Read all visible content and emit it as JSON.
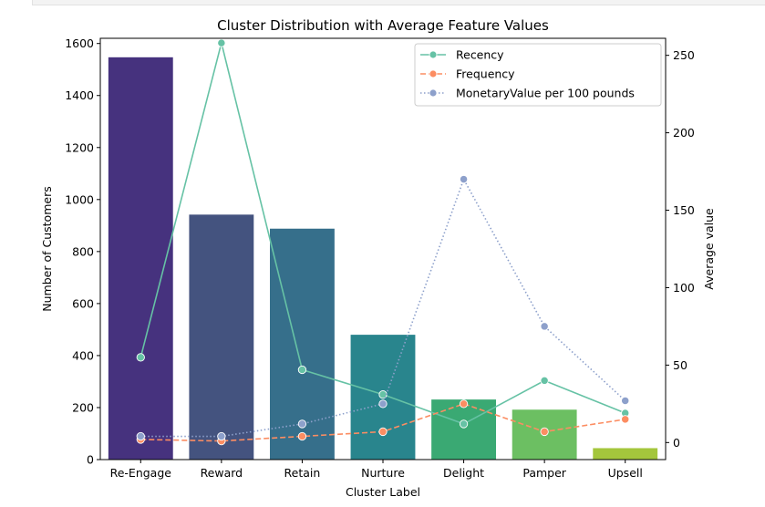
{
  "chart_data": {
    "type": "bar",
    "title": "Cluster Distribution with Average Feature Values",
    "xlabel": "Cluster Label",
    "ylabel_left": "Number of Customers",
    "ylabel_right": "Average value",
    "categories": [
      "Re-Engage",
      "Reward",
      "Retain",
      "Nurture",
      "Delight",
      "Pamper",
      "Upsell"
    ],
    "bar_values": [
      1547,
      942,
      888,
      480,
      231,
      192,
      44
    ],
    "bar_colors": [
      "#46327e",
      "#44537f",
      "#366f8b",
      "#29858d",
      "#3aa973",
      "#6cbf62",
      "#a4c63c"
    ],
    "ylim_left": [
      0,
      1620
    ],
    "yticks_left": [
      0,
      200,
      400,
      600,
      800,
      1000,
      1200,
      1400,
      1600
    ],
    "ylim_right": [
      -11,
      261
    ],
    "yticks_right": [
      0,
      50,
      100,
      150,
      200,
      250
    ],
    "series": [
      {
        "name": "Recency",
        "values": [
          55,
          258,
          47,
          31,
          12,
          40,
          19
        ],
        "color": "#66c2a5",
        "dash": "solid"
      },
      {
        "name": "Frequency",
        "values": [
          2,
          1,
          4,
          7,
          25,
          7,
          15
        ],
        "color": "#fc8d62",
        "dash": "dashed"
      },
      {
        "name": "MonetaryValue per 100 pounds",
        "values": [
          4,
          4,
          12,
          25,
          170,
          75,
          27
        ],
        "color": "#8da0cb",
        "dash": "dotted"
      }
    ],
    "legend_position": "top-right",
    "grid": false,
    "ylabel_left_color": "#0000cc",
    "ylabel_right_color": "#008000"
  }
}
